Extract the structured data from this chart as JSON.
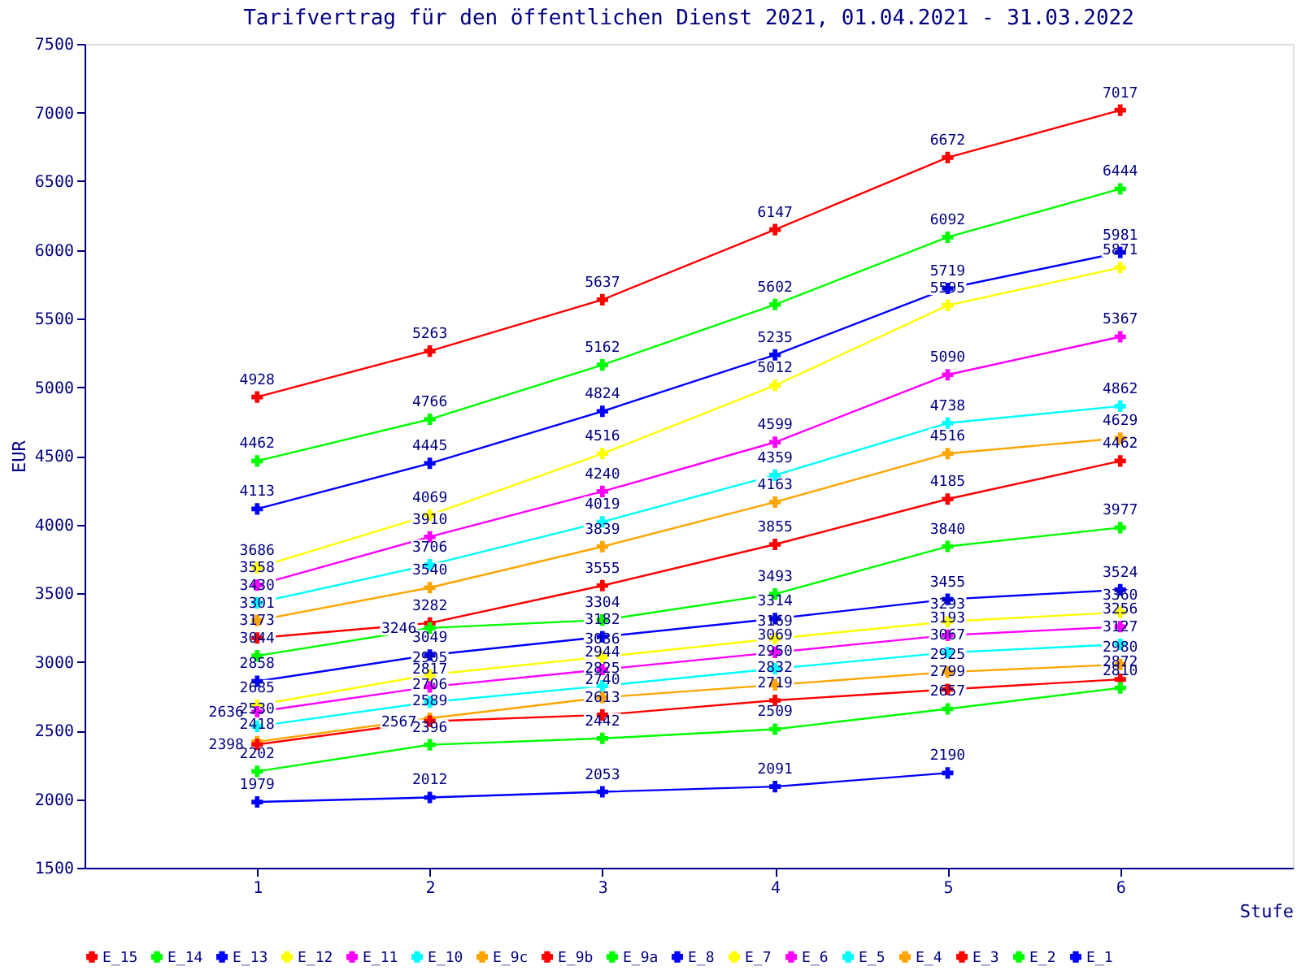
{
  "chart_data": {
    "type": "line",
    "title": "Tarifvertrag für den öffentlichen Dienst 2021, 01.04.2021 - 31.03.2022",
    "xlabel": "Stufe",
    "ylabel": "EUR",
    "x": [
      1,
      2,
      3,
      4,
      5,
      6
    ],
    "xlim": [
      0,
      7
    ],
    "xticks": [
      1,
      2,
      3,
      4,
      5,
      6
    ],
    "ylim": [
      1500,
      7500
    ],
    "yticks": [
      1500,
      2000,
      2500,
      3000,
      3500,
      4000,
      4500,
      5000,
      5500,
      6000,
      6500,
      7000,
      7500
    ],
    "grid": false,
    "legend": "bottom",
    "marker": "cross",
    "line_style": "solid",
    "data_labels": true,
    "series": [
      {
        "name": "E_15",
        "color": "#ff0000",
        "values": [
          4928,
          5263,
          5637,
          6147,
          6672,
          7017
        ]
      },
      {
        "name": "E_14",
        "color": "#00ff00",
        "values": [
          4462,
          4766,
          5162,
          5602,
          6092,
          6444
        ]
      },
      {
        "name": "E_13",
        "color": "#0000ff",
        "values": [
          4113,
          4445,
          4824,
          5235,
          5719,
          5981
        ]
      },
      {
        "name": "E_12",
        "color": "#ffff00",
        "values": [
          3686,
          4069,
          4516,
          5012,
          5595,
          5871
        ]
      },
      {
        "name": "E_11",
        "color": "#ff00ff",
        "values": [
          3558,
          3910,
          4240,
          4599,
          5090,
          5367
        ]
      },
      {
        "name": "E_10",
        "color": "#00ffff",
        "values": [
          3430,
          3706,
          4019,
          4359,
          4738,
          4862
        ]
      },
      {
        "name": "E_9c",
        "color": "#ffa500",
        "values": [
          3301,
          3540,
          3839,
          4163,
          4516,
          4629
        ]
      },
      {
        "name": "E_9b",
        "color": "#ff0000",
        "values": [
          3173,
          3282,
          3555,
          3855,
          4185,
          4462
        ]
      },
      {
        "name": "E_9a",
        "color": "#00ff00",
        "values": [
          3044,
          3246,
          3304,
          3493,
          3840,
          3977
        ]
      },
      {
        "name": "E_8",
        "color": "#0000ff",
        "values": [
          2858,
          3049,
          3182,
          3314,
          3455,
          3524
        ]
      },
      {
        "name": "E_7",
        "color": "#ffff00",
        "values": [
          2685,
          2905,
          3036,
          3169,
          3293,
          3360
        ]
      },
      {
        "name": "E_6",
        "color": "#ff00ff",
        "values": [
          2636,
          2817,
          2944,
          3069,
          3193,
          3256
        ]
      },
      {
        "name": "E_5",
        "color": "#00ffff",
        "values": [
          2530,
          2706,
          2825,
          2950,
          3067,
          3127
        ]
      },
      {
        "name": "E_4",
        "color": "#ffa500",
        "values": [
          2418,
          2589,
          2740,
          2832,
          2925,
          2980
        ]
      },
      {
        "name": "E_3",
        "color": "#ff0000",
        "values": [
          2398,
          2567,
          2613,
          2719,
          2799,
          2872
        ]
      },
      {
        "name": "E_2",
        "color": "#00ff00",
        "values": [
          2202,
          2396,
          2442,
          2509,
          2657,
          2810
        ]
      },
      {
        "name": "E_1",
        "color": "#0000ff",
        "values": [
          1979,
          2012,
          2053,
          2091,
          2190,
          null
        ]
      }
    ]
  }
}
